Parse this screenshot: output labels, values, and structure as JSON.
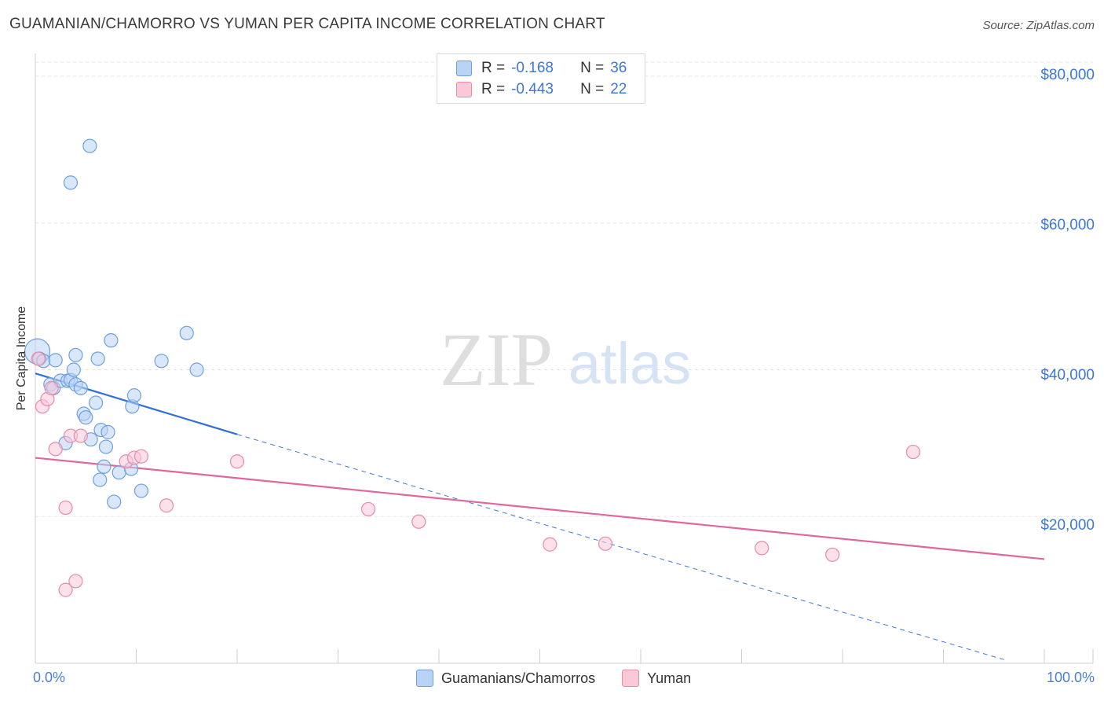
{
  "chart_data": {
    "type": "scatter",
    "title": "GUAMANIAN/CHAMORRO VS YUMAN PER CAPITA INCOME CORRELATION CHART",
    "source": "Source: ZipAtlas.com",
    "xlabel": "",
    "ylabel": "Per Capita Income",
    "xlim": [
      0,
      100
    ],
    "ylim": [
      0,
      82000
    ],
    "x_tick_labels": {
      "min": "0.0%",
      "max": "100.0%"
    },
    "y_ticks": [
      {
        "value": 20000,
        "label": "$20,000"
      },
      {
        "value": 40000,
        "label": "$40,000"
      },
      {
        "value": 60000,
        "label": "$60,000"
      },
      {
        "value": 80000,
        "label": "$80,000"
      }
    ],
    "watermark": {
      "zip": "ZIP",
      "atlas": "atlas"
    },
    "legend": {
      "r_label": "R =",
      "n_label": "N =",
      "entries": [
        {
          "r": "-0.168",
          "n": "36"
        },
        {
          "r": "-0.443",
          "n": "22"
        }
      ]
    },
    "series": [
      {
        "name": "Guamanians/Chamorros",
        "color": "#6f9ee0",
        "fill": "#b9d3f5",
        "trend": {
          "x0": 0,
          "y0": 39500,
          "x1": 20,
          "y1": 31200,
          "dash_to_x": 96,
          "dash_to_y": 500
        },
        "points": [
          [
            0.2,
            42500
          ],
          [
            0.4,
            41500
          ],
          [
            0.8,
            41200
          ],
          [
            1.5,
            38000
          ],
          [
            1.8,
            37500
          ],
          [
            2.0,
            41300
          ],
          [
            2.5,
            38500
          ],
          [
            3.0,
            30000
          ],
          [
            3.2,
            38500
          ],
          [
            3.5,
            38600
          ],
          [
            3.8,
            40000
          ],
          [
            4.0,
            42000
          ],
          [
            3.5,
            65500
          ],
          [
            4.0,
            38000
          ],
          [
            4.5,
            37500
          ],
          [
            4.8,
            34000
          ],
          [
            5.0,
            33500
          ],
          [
            5.5,
            30500
          ],
          [
            6.0,
            35500
          ],
          [
            6.5,
            31800
          ],
          [
            7.0,
            29500
          ],
          [
            5.4,
            70500
          ],
          [
            6.2,
            41500
          ],
          [
            6.4,
            25000
          ],
          [
            6.8,
            26800
          ],
          [
            7.2,
            31500
          ],
          [
            7.5,
            44000
          ],
          [
            7.8,
            22000
          ],
          [
            8.3,
            26000
          ],
          [
            9.5,
            26500
          ],
          [
            9.6,
            35000
          ],
          [
            9.8,
            36500
          ],
          [
            10.5,
            23500
          ],
          [
            12.5,
            41200
          ],
          [
            15.0,
            45000
          ],
          [
            16.0,
            40000
          ]
        ]
      },
      {
        "name": "Yuman",
        "color": "#e98aa9",
        "fill": "#f9c9d8",
        "trend": {
          "x0": 0,
          "y0": 28000,
          "x1": 100,
          "y1": 14200
        },
        "points": [
          [
            0.3,
            41500
          ],
          [
            0.7,
            35000
          ],
          [
            1.2,
            36000
          ],
          [
            1.6,
            37500
          ],
          [
            2.0,
            29200
          ],
          [
            3.0,
            10000
          ],
          [
            3.0,
            21200
          ],
          [
            3.5,
            31000
          ],
          [
            4.0,
            11200
          ],
          [
            4.5,
            31000
          ],
          [
            9.0,
            27500
          ],
          [
            9.8,
            28000
          ],
          [
            10.5,
            28200
          ],
          [
            13.0,
            21500
          ],
          [
            20.0,
            27500
          ],
          [
            33.0,
            21000
          ],
          [
            38.0,
            19300
          ],
          [
            51.0,
            16200
          ],
          [
            56.5,
            16300
          ],
          [
            72.0,
            15700
          ],
          [
            79.0,
            14800
          ],
          [
            87.0,
            28800
          ]
        ]
      }
    ]
  }
}
